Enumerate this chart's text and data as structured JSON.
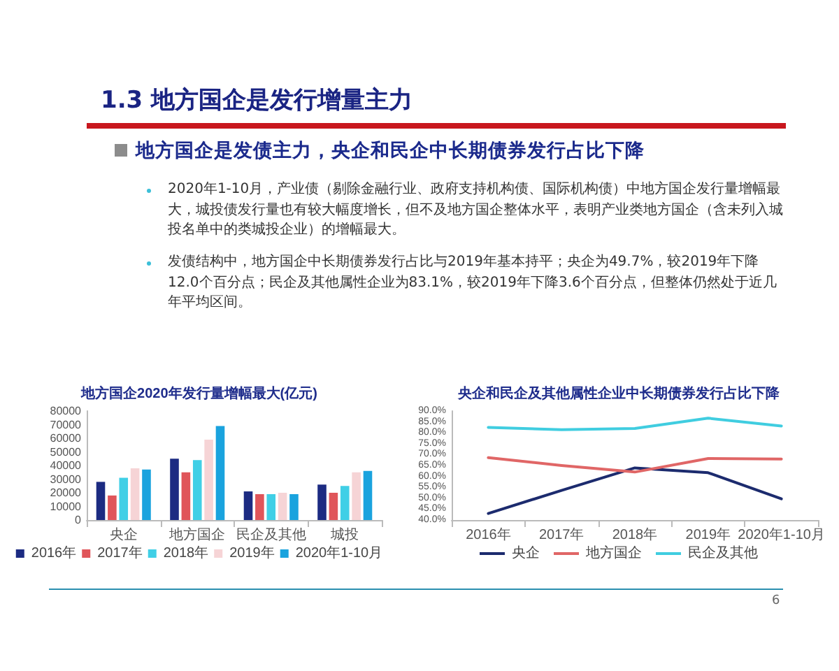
{
  "chart_data": [
    {
      "type": "other",
      "title": "1.3 地方国企是发行增量主力",
      "subtitle": "地方国企是发债主力，央企和民企中长期债券发行占比下降",
      "annotations": [
        "2020年1-10月，产业债（剔除金融行业、政府支持机构债、国际机构债）中地方国企发行量增幅最大，城投债发行量也有较大幅度增长，但不及地方国企整体水平，表明产业类地方国企（含未列入城投名单中的类城投企业）的增幅最大。",
        "发债结构中，地方国企中长期债券发行占比与2019年基本持平；央企为49.7%，较2019年下降12.0个百分点；民企及其他属性企业为83.1%，较2019年下降3.6个百分点，但整体仍然处于近几年平均区间。",
        "6"
      ]
    },
    {
      "type": "bar",
      "title": "地方国企2020年发行量增幅最大(亿元)",
      "categories": [
        "央企",
        "地方国企",
        "民企及其他",
        "城投"
      ],
      "series": [
        {
          "name": "2016年",
          "color": "#1c2b82",
          "values": [
            28000,
            45000,
            21000,
            26000
          ]
        },
        {
          "name": "2017年",
          "color": "#e0555a",
          "values": [
            18000,
            35000,
            19000,
            20000
          ]
        },
        {
          "name": "2018年",
          "color": "#40cfe6",
          "values": [
            31000,
            44000,
            19000,
            25000
          ]
        },
        {
          "name": "2019年",
          "color": "#f6d4d6",
          "values": [
            38000,
            59000,
            20000,
            35000
          ]
        },
        {
          "name": "2020年1-10月",
          "color": "#1aa3de",
          "values": [
            37000,
            69000,
            19000,
            36000
          ]
        }
      ],
      "ylim": [
        0,
        80000
      ],
      "yticks": [
        0,
        10000,
        20000,
        30000,
        40000,
        50000,
        60000,
        70000,
        80000
      ],
      "grid": false,
      "legend": "bottom"
    },
    {
      "type": "line",
      "title": "央企和民企及其他属性企业中长期债券发行占比下降",
      "categories": [
        "2016年",
        "2017年",
        "2018年",
        "2019年",
        "2020年1-10月"
      ],
      "series": [
        {
          "name": "央企",
          "color": "#1c2b6e",
          "values": [
            43.0,
            53.6,
            63.9,
            61.7,
            49.7
          ]
        },
        {
          "name": "地方国企",
          "color": "#e06666",
          "values": [
            68.6,
            65.0,
            62.0,
            68.2,
            68.0
          ]
        },
        {
          "name": "民企及其他",
          "color": "#40cde0",
          "values": [
            82.5,
            81.4,
            82.0,
            86.7,
            83.1
          ]
        }
      ],
      "ylim": [
        40,
        90
      ],
      "yticks": [
        {
          "value": 40,
          "label": "40.0%"
        },
        {
          "value": 45,
          "label": "45.0%"
        },
        {
          "value": 50,
          "label": "50.0%"
        },
        {
          "value": 55,
          "label": "55.0%"
        },
        {
          "value": 60,
          "label": "60.0%"
        },
        {
          "value": 65,
          "label": "65.0%"
        },
        {
          "value": 70,
          "label": "70.0%"
        },
        {
          "value": 75,
          "label": "75.0%"
        },
        {
          "value": 80,
          "label": "80.0%"
        },
        {
          "value": 85,
          "label": "85.0%"
        },
        {
          "value": 90,
          "label": "90.0%"
        }
      ],
      "grid": false,
      "legend": "bottom",
      "marker": "none",
      "line_style": "solid"
    }
  ]
}
